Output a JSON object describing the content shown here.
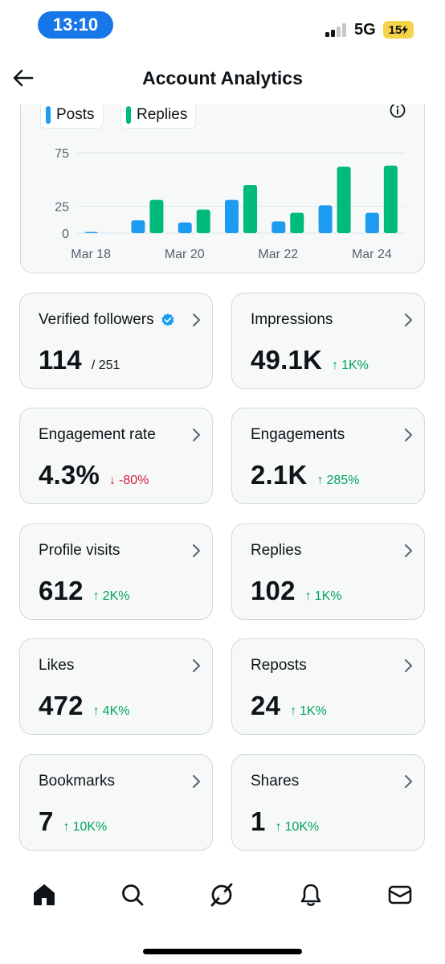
{
  "status_bar": {
    "time": "13:10",
    "network": "5G",
    "battery": "15"
  },
  "header": {
    "title": "Account Analytics"
  },
  "chart_data": {
    "type": "bar",
    "legend": [
      "Posts",
      "Replies"
    ],
    "colors": {
      "Posts": "#1d9bf0",
      "Replies": "#00ba7c"
    },
    "categories": [
      "Mar 18",
      "Mar 19",
      "Mar 20",
      "Mar 21",
      "Mar 22",
      "Mar 23",
      "Mar 24"
    ],
    "x_tick_labels": [
      "Mar 18",
      "Mar 20",
      "Mar 22",
      "Mar 24"
    ],
    "y_tick_labels": [
      "75",
      "25",
      "0"
    ],
    "y_ticks": [
      75,
      25,
      0
    ],
    "series": [
      {
        "name": "Posts",
        "values": [
          0.5,
          12,
          10,
          31,
          11,
          26,
          19
        ]
      },
      {
        "name": "Replies",
        "values": [
          0,
          31,
          22,
          45,
          19,
          62,
          63
        ]
      }
    ],
    "grid": true
  },
  "stats": [
    {
      "label": "Verified followers",
      "value": "114",
      "sub": "/ 251"
    },
    {
      "label": "Impressions",
      "value": "49.1K",
      "delta": "1K%",
      "direction": "up"
    },
    {
      "label": "Engagement rate",
      "value": "4.3%",
      "delta": "-80%",
      "direction": "down"
    },
    {
      "label": "Engagements",
      "value": "2.1K",
      "delta": "285%",
      "direction": "up"
    },
    {
      "label": "Profile visits",
      "value": "612",
      "delta": "2K%",
      "direction": "up"
    },
    {
      "label": "Replies",
      "value": "102",
      "delta": "1K%",
      "direction": "up"
    },
    {
      "label": "Likes",
      "value": "472",
      "delta": "4K%",
      "direction": "up"
    },
    {
      "label": "Reposts",
      "value": "24",
      "delta": "1K%",
      "direction": "up"
    },
    {
      "label": "Bookmarks",
      "value": "7",
      "delta": "10K%",
      "direction": "up"
    },
    {
      "label": "Shares",
      "value": "1",
      "delta": "10K%",
      "direction": "up"
    }
  ],
  "arrows": {
    "up": "↑",
    "down": "↓"
  },
  "tabs": [
    "home-icon",
    "search-icon",
    "grok-icon",
    "notifications-icon",
    "messages-icon"
  ]
}
